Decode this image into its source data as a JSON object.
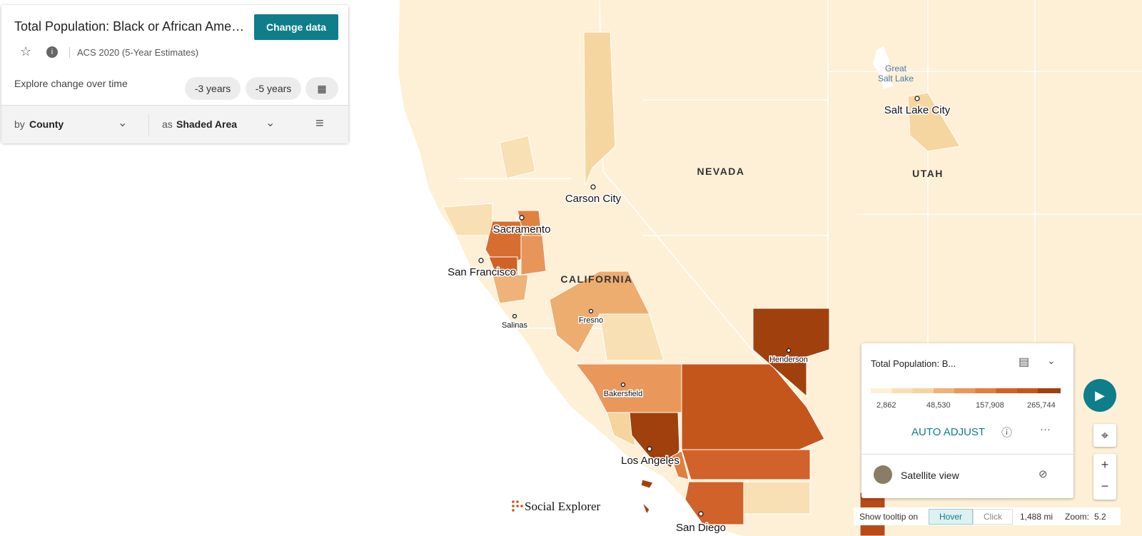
{
  "panel": {
    "title": "Total Population: Black or African Ame…",
    "change_data": "Change data",
    "survey": "ACS 2020 (5-Year Estimates)",
    "explore": "Explore change over time",
    "ranges": [
      "-3 years",
      "-5 years"
    ],
    "by_prefix": "by",
    "by_value": "County",
    "as_prefix": "as",
    "as_value": "Shaded Area"
  },
  "map_labels": {
    "states": [
      "NEVADA",
      "UTAH",
      "CALIFORNIA"
    ],
    "lake": [
      "Great",
      "Salt Lake"
    ],
    "cities": [
      "Salt Lake City",
      "Carson City",
      "Sacramento",
      "San Francisco",
      "Fresno",
      "Salinas",
      "Henderson",
      "Bakersfield",
      "Los Angeles",
      "San Diego"
    ]
  },
  "legend": {
    "title": "Total Population: B...",
    "ticks": [
      "2,862",
      "48,530",
      "157,908",
      "265,744"
    ],
    "auto_adjust": "AUTO ADJUST",
    "satellite": "Satellite view"
  },
  "brand": "Social Explorer",
  "status": {
    "tooltip_label": "Show tooltip on",
    "hover": "Hover",
    "click": "Click",
    "scale": "1,488 mi",
    "zoom_label": "Zoom:",
    "zoom": "5.2"
  }
}
